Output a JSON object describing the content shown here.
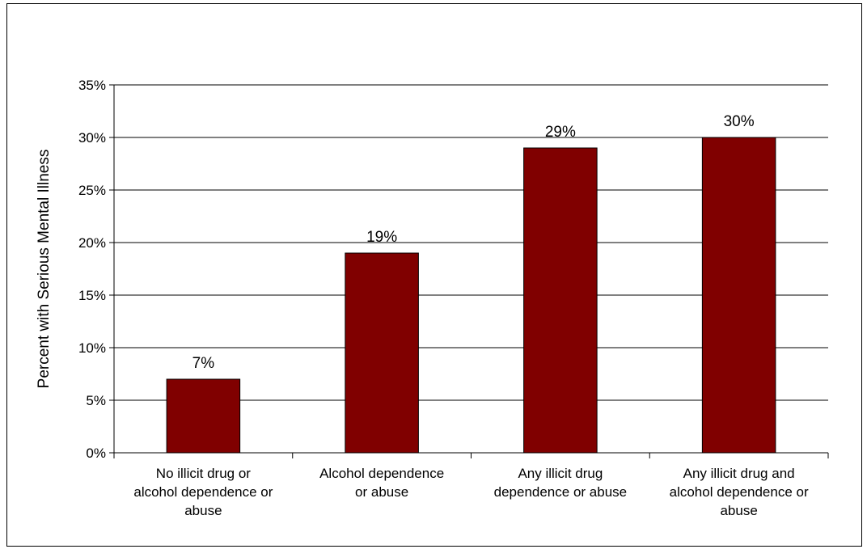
{
  "chart_data": {
    "type": "bar",
    "title": "",
    "xlabel": "",
    "ylabel": "Percent with Serious Mental Illness",
    "categories": [
      "No illicit drug or alcohol dependence or abuse",
      "Alcohol dependence or abuse",
      "Any illicit drug dependence or abuse",
      "Any illicit drug and alcohol dependence or abuse"
    ],
    "category_lines": [
      [
        "No illicit drug or",
        "alcohol dependence or",
        "abuse"
      ],
      [
        "Alcohol dependence",
        "or abuse"
      ],
      [
        "Any illicit drug",
        "dependence or abuse"
      ],
      [
        "Any illicit drug and",
        "alcohol dependence or",
        "abuse"
      ]
    ],
    "values": [
      7,
      19,
      29,
      30
    ],
    "data_labels": [
      "7%",
      "19%",
      "29%",
      "30%"
    ],
    "ylim": [
      0,
      35
    ],
    "yticks": [
      0,
      5,
      10,
      15,
      20,
      25,
      30,
      35
    ],
    "ytick_labels": [
      "0%",
      "5%",
      "10%",
      "15%",
      "20%",
      "25%",
      "30%",
      "35%"
    ],
    "grid": true,
    "legend": "none",
    "bar_color": "#800000"
  }
}
